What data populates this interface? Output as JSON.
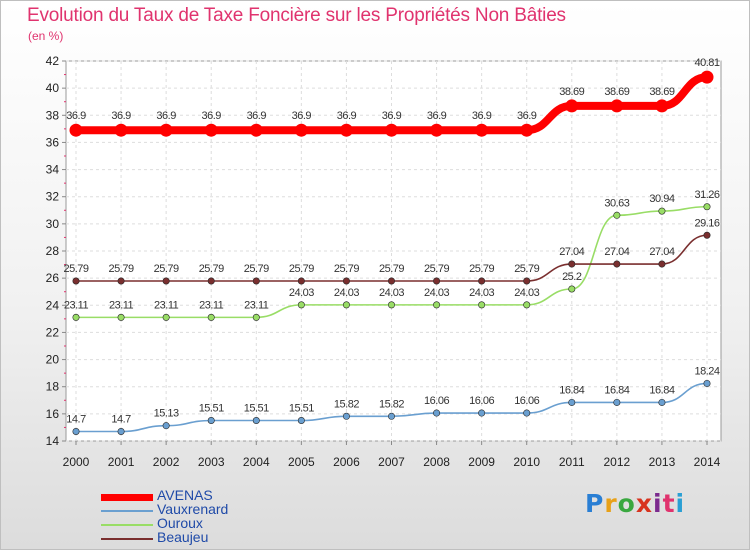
{
  "title": "Evolution du Taux de Taxe Foncière sur les Propriétés Non Bâties",
  "subtitle": "(en %)",
  "logo": {
    "text": "Proxiti",
    "colors": [
      "#2a7fd4",
      "#e8a118",
      "#3aa840",
      "#d8341f",
      "#7b2a8e",
      "#e0336e",
      "#2a9fd4"
    ]
  },
  "chart_data": {
    "type": "line",
    "title": "Evolution du Taux de Taxe Foncière sur les Propriétés Non Bâties",
    "ylabel": "(en %)",
    "xlabel": "",
    "ylim": [
      14,
      42
    ],
    "yticks": [
      "14",
      "16",
      "18",
      "20",
      "22",
      "24",
      "26",
      "28",
      "30",
      "32",
      "34",
      "36",
      "38",
      "40",
      "42"
    ],
    "grid": true,
    "legend_position": "bottom-left",
    "categories": [
      "2000",
      "2001",
      "2002",
      "2003",
      "2004",
      "2005",
      "2006",
      "2007",
      "2008",
      "2009",
      "2010",
      "2011",
      "2012",
      "2013",
      "2014"
    ],
    "series": [
      {
        "name": "AVENAS",
        "color": "#ff0000",
        "style": "bold",
        "values": [
          36.9,
          36.9,
          36.9,
          36.9,
          36.9,
          36.9,
          36.9,
          36.9,
          36.9,
          36.9,
          36.9,
          38.69,
          38.69,
          38.69,
          40.81
        ],
        "labels": [
          "36.9",
          "36.9",
          "36.9",
          "36.9",
          "36.9",
          "36.9",
          "36.9",
          "36.9",
          "36.9",
          "36.9",
          "36.9",
          "38.69",
          "38.69",
          "38.69",
          "40.81"
        ]
      },
      {
        "name": "Vauxrenard",
        "color": "#6a9fd0",
        "style": "normal",
        "values": [
          14.7,
          14.7,
          15.13,
          15.51,
          15.51,
          15.51,
          15.82,
          15.82,
          16.06,
          16.06,
          16.06,
          16.84,
          16.84,
          16.84,
          18.24
        ],
        "labels": [
          "14.7",
          "14.7",
          "15.13",
          "15.51",
          "15.51",
          "15.51",
          "15.82",
          "15.82",
          "16.06",
          "16.06",
          "16.06",
          "16.84",
          "16.84",
          "16.84",
          "18.24"
        ]
      },
      {
        "name": "Ouroux",
        "color": "#99dd66",
        "style": "normal",
        "values": [
          23.11,
          23.11,
          23.11,
          23.11,
          23.11,
          24.03,
          24.03,
          24.03,
          24.03,
          24.03,
          24.03,
          25.2,
          30.63,
          30.94,
          31.26
        ],
        "labels": [
          "23.11",
          "23.11",
          "23.11",
          "23.11",
          "23.11",
          "24.03",
          "24.03",
          "24.03",
          "24.03",
          "24.03",
          "24.03",
          "25.2",
          "30.63",
          "30.94",
          "31.26"
        ]
      },
      {
        "name": "Beaujeu",
        "color": "#7a2f2f",
        "style": "normal",
        "values": [
          25.79,
          25.79,
          25.79,
          25.79,
          25.79,
          25.79,
          25.79,
          25.79,
          25.79,
          25.79,
          25.79,
          27.04,
          27.04,
          27.04,
          29.16
        ],
        "labels": [
          "25.79",
          "25.79",
          "25.79",
          "25.79",
          "25.79",
          "25.79",
          "25.79",
          "25.79",
          "25.79",
          "25.79",
          "25.79",
          "27.04",
          "27.04",
          "27.04",
          "29.16"
        ]
      }
    ]
  }
}
